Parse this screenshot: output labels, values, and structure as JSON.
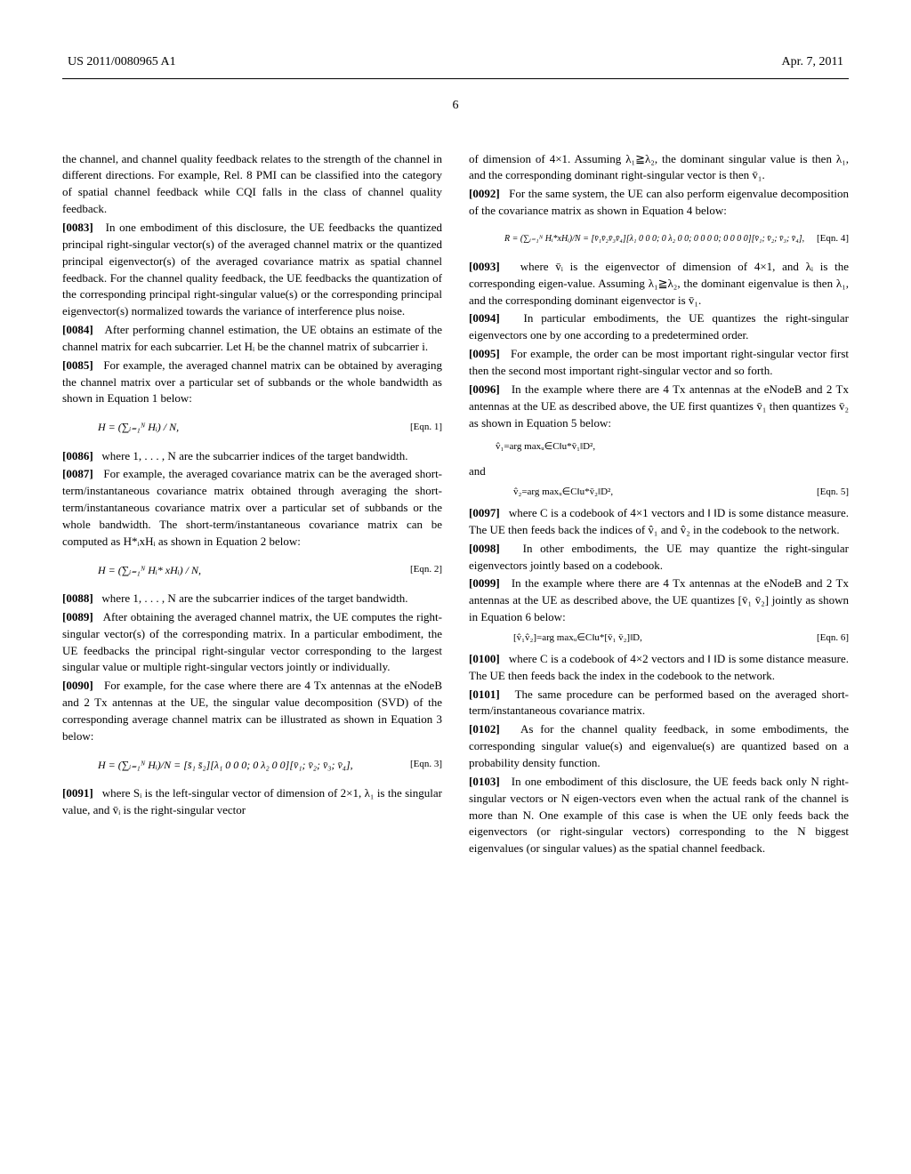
{
  "header": {
    "left": "US 2011/0080965 A1",
    "right": "Apr. 7, 2011"
  },
  "page_number": "6",
  "left_column": {
    "intro": "the channel, and channel quality feedback relates to the strength of the channel in different directions. For example, Rel. 8 PMI can be classified into the category of spatial channel feedback while CQI falls in the class of channel quality feedback.",
    "p0083_num": "[0083]",
    "p0083": "In one embodiment of this disclosure, the UE feedbacks the quantized principal right-singular vector(s) of the averaged channel matrix or the quantized principal eigenvector(s) of the averaged covariance matrix as spatial channel feedback. For the channel quality feedback, the UE feedbacks the quantization of the corresponding principal right-singular value(s) or the corresponding principal eigenvector(s) normalized towards the variance of interference plus noise.",
    "p0084_num": "[0084]",
    "p0084": "After performing channel estimation, the UE obtains an estimate of the channel matrix for each subcarrier. Let Hᵢ be the channel matrix of subcarrier i.",
    "p0085_num": "[0085]",
    "p0085": "For example, the averaged channel matrix can be obtained by averaging the channel matrix over a particular set of subbands or the whole bandwidth as shown in Equation 1 below:",
    "eqn1": "H = (∑ᵢ₌₁ᴺ Hᵢ) / N,",
    "eqn1_label": "[Eqn. 1]",
    "p0086_num": "[0086]",
    "p0086": "where 1, . . . , N are the subcarrier indices of the target bandwidth.",
    "p0087_num": "[0087]",
    "p0087": "For example, the averaged covariance matrix can be the averaged short-term/instantaneous covariance matrix obtained through averaging the short-term/instantaneous covariance matrix over a particular set of subbands or the whole bandwidth. The short-term/instantaneous covariance matrix can be computed as H*ᵢxHᵢ as shown in Equation 2 below:",
    "eqn2": "H = (∑ᵢ₌₁ᴺ Hᵢ* xHᵢ) / N,",
    "eqn2_label": "[Eqn. 2]",
    "p0088_num": "[0088]",
    "p0088": "where 1, . . . , N are the subcarrier indices of the target bandwidth.",
    "p0089_num": "[0089]",
    "p0089": "After obtaining the averaged channel matrix, the UE computes the right-singular vector(s) of the corresponding matrix. In a particular embodiment, the UE feedbacks the principal right-singular vector corresponding to the largest singular value or multiple right-singular vectors jointly or individually.",
    "p0090_num": "[0090]",
    "p0090": "For example, for the case where there are 4 Tx antennas at the eNodeB and 2 Tx antennas at the UE, the singular value decomposition (SVD) of the corresponding average channel matrix can be illustrated as shown in Equation 3 below:",
    "eqn3": "H = (∑ᵢ₌₁ᴺ Hᵢ)/N = [s̄₁ s̄₂][λ₁ 0 0 0; 0 λ₂ 0 0][v̄₁; v̄₂; v̄₃; v̄₄],",
    "eqn3_label": "[Eqn. 3]",
    "p0091_num": "[0091]",
    "p0091": "where Sᵢ is the left-singular vector of dimension of 2×1, λ₁ is the singular value, and v̄ᵢ is the right-singular vector"
  },
  "right_column": {
    "intro": "of dimension of 4×1. Assuming λ₁≧λ₂, the dominant singular value is then λ₁, and the corresponding dominant right-singular vector is then v̄₁.",
    "p0092_num": "[0092]",
    "p0092": "For the same system, the UE can also perform eigenvalue decomposition of the covariance matrix as shown in Equation 4 below:",
    "eqn4": "R = (∑ᵢ₌₁ᴺ Hᵢ*xHᵢ)/N = [v̄₁v̄₂v̄₃v̄₄][λ₁ 0 0 0; 0 λ₂ 0 0; 0 0 0 0; 0 0 0 0][v̄₁; v̄₂; v̄₃; v̄₄],",
    "eqn4_label": "[Eqn. 4]",
    "p0093_num": "[0093]",
    "p0093": "where v̄ᵢ is the eigenvector of dimension of 4×1, and λᵢ is the corresponding eigen-value. Assuming λ₁≧λ₂, the dominant eigenvalue is then λ₁, and the corresponding dominant eigenvector is v̄₁.",
    "p0094_num": "[0094]",
    "p0094": "In particular embodiments, the UE quantizes the right-singular eigenvectors one by one according to a predetermined order.",
    "p0095_num": "[0095]",
    "p0095": "For example, the order can be most important right-singular vector first then the second most important right-singular vector and so forth.",
    "p0096_num": "[0096]",
    "p0096": "In the example where there are 4 Tx antennas at the eNodeB and 2 Tx antennas at the UE as described above, the UE first quantizes v̄₁ then quantizes v̄₂ as shown in Equation 5 below:",
    "eqn5a": "v̂₁=arg maxᵤ∈C‖u*v̄₁‖D²,",
    "eqn5_and": "and",
    "eqn5b": "v̂₂=arg maxᵤ∈C‖u*v̄₂‖D²,",
    "eqn5_label": "[Eqn. 5]",
    "p0097_num": "[0097]",
    "p0097": "where C is a codebook of 4×1 vectors and ‖ ‖D is some distance measure. The UE then feeds back the indices of v̂₁ and v̂₂ in the codebook to the network.",
    "p0098_num": "[0098]",
    "p0098": "In other embodiments, the UE may quantize the right-singular eigenvectors jointly based on a codebook.",
    "p0099_num": "[0099]",
    "p0099": "In the example where there are 4 Tx antennas at the eNodeB and 2 Tx antennas at the UE as described above, the UE quantizes [v̄₁ v̄₂] jointly as shown in Equation 6 below:",
    "eqn6": "[v̂₁v̂₂]=arg maxᵤ∈C‖u*[v̄₁ v̄₂]‖D,",
    "eqn6_label": "[Eqn. 6]",
    "p0100_num": "[0100]",
    "p0100": "where C is a codebook of 4×2 vectors and ‖ ‖D is some distance measure. The UE then feeds back the index in the codebook to the network.",
    "p0101_num": "[0101]",
    "p0101": "The same procedure can be performed based on the averaged short-term/instantaneous covariance matrix.",
    "p0102_num": "[0102]",
    "p0102": "As for the channel quality feedback, in some embodiments, the corresponding singular value(s) and eigenvalue(s) are quantized based on a probability density function.",
    "p0103_num": "[0103]",
    "p0103": "In one embodiment of this disclosure, the UE feeds back only N right-singular vectors or N eigen-vectors even when the actual rank of the channel is more than N. One example of this case is when the UE only feeds back the eigenvectors (or right-singular vectors) corresponding to the N biggest eigenvalues (or singular values) as the spatial channel feedback."
  }
}
